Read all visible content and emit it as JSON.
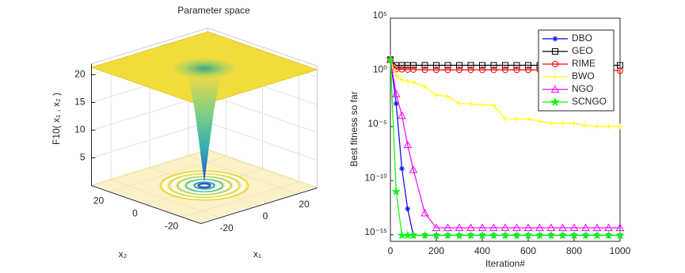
{
  "chart_data": [
    {
      "type": "surface",
      "title": "Parameter space",
      "xlabel": "x₁",
      "ylabel": "x₂",
      "zlabel": "F10( x₁ , x₂ )",
      "xlim": [
        -30,
        30
      ],
      "ylim": [
        -30,
        30
      ],
      "zlim": [
        0,
        22
      ],
      "xticks": [
        -20,
        0,
        20
      ],
      "yticks": [
        -20,
        0,
        20
      ],
      "zticks": [
        5,
        10,
        15,
        20
      ],
      "grid": true
    },
    {
      "type": "line",
      "xlabel": "Iteration#",
      "ylabel": "Best fitness so far",
      "yscale": "log",
      "legend": "northeast",
      "x": [
        0,
        25,
        50,
        75,
        100,
        150,
        200,
        250,
        300,
        350,
        400,
        450,
        500,
        550,
        600,
        650,
        700,
        750,
        800,
        850,
        900,
        950,
        1000
      ],
      "xlim": [
        0,
        1000
      ],
      "xticks": [
        0,
        200,
        400,
        600,
        800,
        1000
      ],
      "ylim": [
        2.5e-16,
        100000
      ],
      "yticks": [
        {
          "value": 1e-15,
          "label": "10⁻¹⁵"
        },
        {
          "value": 1e-10,
          "label": "10⁻¹⁰"
        },
        {
          "value": 1e-05,
          "label": "10⁻⁵"
        },
        {
          "value": 1,
          "label": "10⁰"
        },
        {
          "value": 100000,
          "label": "10⁵"
        }
      ],
      "series": [
        {
          "name": "DBO",
          "color": "#0000ff",
          "marker": "asterisk",
          "values": [
            15,
            0.0013,
            1.3e-09,
            2.5e-13,
            8.88e-16,
            8.88e-16,
            8.88e-16,
            8.88e-16,
            8.88e-16,
            8.88e-16,
            8.88e-16,
            8.88e-16,
            8.88e-16,
            8.88e-16,
            8.88e-16,
            8.88e-16,
            8.88e-16,
            8.88e-16,
            8.88e-16,
            8.88e-16,
            8.88e-16,
            8.88e-16,
            8.88e-16
          ]
        },
        {
          "name": "GEO",
          "color": "#000000",
          "marker": "square",
          "values": [
            15,
            4.5,
            4.5,
            4.5,
            4.5,
            4.5,
            4.5,
            4.5,
            4.5,
            4.5,
            4.5,
            4.5,
            4.5,
            4.5,
            4.5,
            4.5,
            4.5,
            4.5,
            4.5,
            4.5,
            4.5,
            4.5,
            4.5
          ]
        },
        {
          "name": "RIME",
          "color": "#ff0000",
          "marker": "circle",
          "values": [
            15,
            2,
            1.9,
            1.8,
            1.8,
            1.7,
            1.7,
            1.7,
            1.7,
            1.7,
            1.7,
            1.7,
            1.7,
            1.7,
            1.7,
            1.7,
            1.7,
            1.7,
            1.7,
            1.7,
            1.7,
            1.7,
            1.4
          ]
        },
        {
          "name": "BWO",
          "color": "#ffff00",
          "marker": "plus",
          "values": [
            15,
            0.5,
            0.2,
            0.15,
            0.12,
            0.05,
            0.008,
            0.006,
            0.0013,
            0.0012,
            0.001,
            0.0009,
            5e-05,
            5e-05,
            5e-05,
            3e-05,
            2e-05,
            2e-05,
            2e-05,
            1.2e-05,
            1e-05,
            1e-05,
            1e-05
          ]
        },
        {
          "name": "NGO",
          "color": "#ff00ff",
          "marker": "triangle",
          "values": [
            15,
            0.01,
            0.0001,
            2e-07,
            1e-09,
            1e-13,
            4.4e-15,
            4.4e-15,
            4.4e-15,
            4.4e-15,
            4.4e-15,
            4.4e-15,
            4.4e-15,
            4.4e-15,
            4.4e-15,
            4.4e-15,
            4.4e-15,
            4.4e-15,
            4.4e-15,
            4.4e-15,
            4.4e-15,
            4.4e-15,
            4.4e-15
          ]
        },
        {
          "name": "SCNGO",
          "color": "#00ff00",
          "marker": "star",
          "values": [
            15,
            1e-11,
            8.88e-16,
            8.88e-16,
            8.88e-16,
            8.88e-16,
            8.88e-16,
            8.88e-16,
            8.88e-16,
            8.88e-16,
            8.88e-16,
            8.88e-16,
            8.88e-16,
            8.88e-16,
            8.88e-16,
            8.88e-16,
            8.88e-16,
            8.88e-16,
            8.88e-16,
            8.88e-16,
            8.88e-16,
            8.88e-16,
            8.88e-16
          ]
        }
      ]
    }
  ]
}
